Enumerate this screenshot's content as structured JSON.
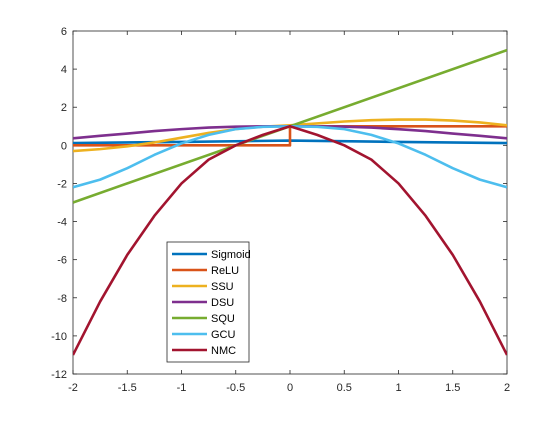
{
  "chart_data": {
    "type": "line",
    "xlim": [
      -2,
      2
    ],
    "ylim": [
      -12,
      6
    ],
    "xticks": [
      -2,
      -1.5,
      -1,
      -0.5,
      0,
      0.5,
      1,
      1.5,
      2
    ],
    "xtick_labels": [
      "-2",
      "-1.5",
      "-1",
      "-0.5",
      "0",
      "0.5",
      "1",
      "1.5",
      "2"
    ],
    "yticks": [
      -12,
      -10,
      -8,
      -6,
      -4,
      -2,
      0,
      2,
      4,
      6
    ],
    "ytick_labels": [
      "-12",
      "-10",
      "-8",
      "-6",
      "-4",
      "-2",
      "0",
      "2",
      "4",
      "6"
    ],
    "grid": false,
    "legend_position": "lower-left",
    "x": [
      -2,
      -1.75,
      -1.5,
      -1.25,
      -1,
      -0.75,
      -0.5,
      -0.25,
      0,
      0.25,
      0.5,
      0.75,
      1,
      1.25,
      1.5,
      1.75,
      2
    ],
    "series": [
      {
        "name": "Sigmoid",
        "color": "#0072BD",
        "x": [
          -2,
          -1,
          0,
          1,
          2
        ],
        "values": [
          0.12,
          0.18,
          0.25,
          0.18,
          0.12
        ]
      },
      {
        "name": "ReLU",
        "color": "#D95319",
        "x": [
          -2,
          0,
          0,
          2
        ],
        "values": [
          0,
          0,
          1,
          1
        ]
      },
      {
        "name": "SSU",
        "color": "#EDB120",
        "values": [
          -0.3,
          -0.2,
          -0.05,
          0.15,
          0.4,
          0.65,
          0.85,
          0.98,
          1.05,
          1.15,
          1.25,
          1.32,
          1.35,
          1.35,
          1.3,
          1.2,
          1.05
        ]
      },
      {
        "name": "DSU",
        "color": "#7E2F8E",
        "values": [
          0.37,
          0.5,
          0.62,
          0.75,
          0.85,
          0.93,
          0.98,
          1.0,
          1.0,
          1.0,
          0.98,
          0.93,
          0.85,
          0.75,
          0.62,
          0.5,
          0.37
        ]
      },
      {
        "name": "SQU",
        "color": "#77AC30",
        "x": [
          -2,
          2
        ],
        "values": [
          -3,
          5
        ]
      },
      {
        "name": "GCU",
        "color": "#4DBEEE",
        "values": [
          -2.2,
          -1.8,
          -1.2,
          -0.5,
          0.1,
          0.55,
          0.85,
          0.97,
          1.0,
          0.97,
          0.85,
          0.55,
          0.1,
          -0.5,
          -1.2,
          -1.8,
          -2.2
        ]
      },
      {
        "name": "NMC",
        "color": "#A2142F",
        "values": [
          -11,
          -8.2,
          -5.75,
          -3.7,
          -2,
          -0.75,
          0,
          0.55,
          1,
          0.55,
          0,
          -0.75,
          -2,
          -3.7,
          -5.75,
          -8.2,
          -11
        ]
      }
    ]
  }
}
